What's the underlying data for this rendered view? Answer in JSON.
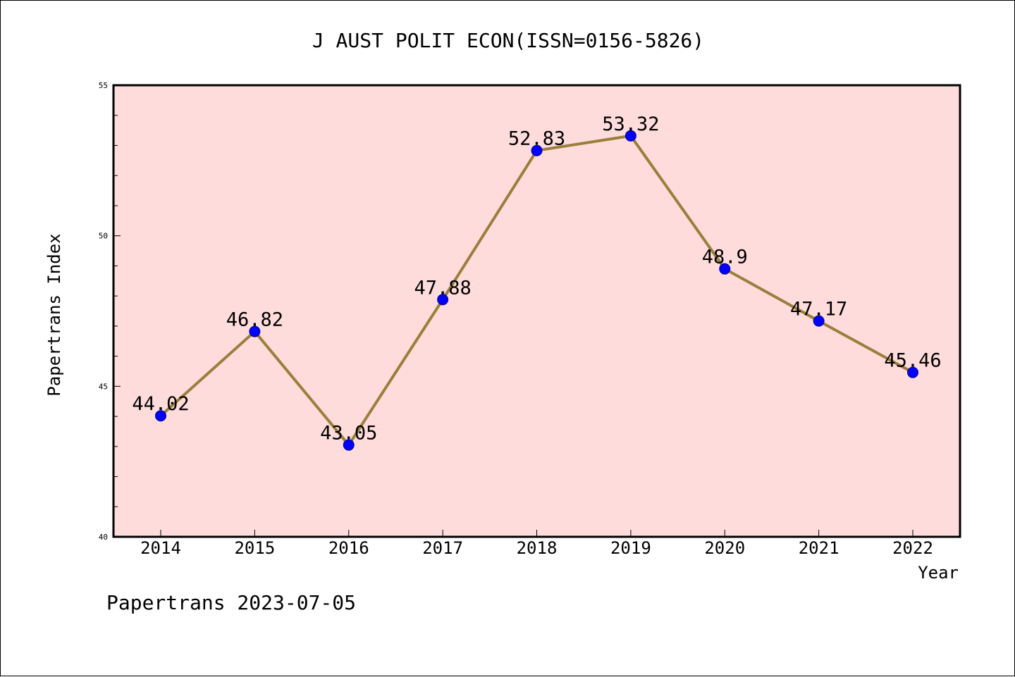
{
  "chart_data": {
    "type": "line",
    "title": "J AUST POLIT ECON(ISSN=0156-5826)",
    "xlabel": "Year",
    "ylabel": "Papertrans Index",
    "footer": "Papertrans 2023-07-05",
    "categories": [
      "2014",
      "2015",
      "2016",
      "2017",
      "2018",
      "2019",
      "2020",
      "2021",
      "2022"
    ],
    "series": [
      {
        "values": [
          44.02,
          46.82,
          43.05,
          47.88,
          52.83,
          53.32,
          48.9,
          47.17,
          45.46
        ],
        "labels": [
          "44.02",
          "46.82",
          "43.05",
          "47.88",
          "52.83",
          "53.32",
          "48.9",
          "47.17",
          "45.46"
        ]
      }
    ],
    "ylim": [
      40,
      55
    ],
    "y_major_ticks": [
      40,
      45,
      50,
      55
    ],
    "y_major_tick_labels": [
      "40",
      "45",
      "50",
      "55"
    ],
    "y_minor_tick_step": 1,
    "grid": false,
    "legend": "none",
    "colors": {
      "plot_background": "#ffdcdc",
      "line": "#9a7f3c",
      "marker": "#0000ff",
      "axes": "#000000"
    }
  }
}
